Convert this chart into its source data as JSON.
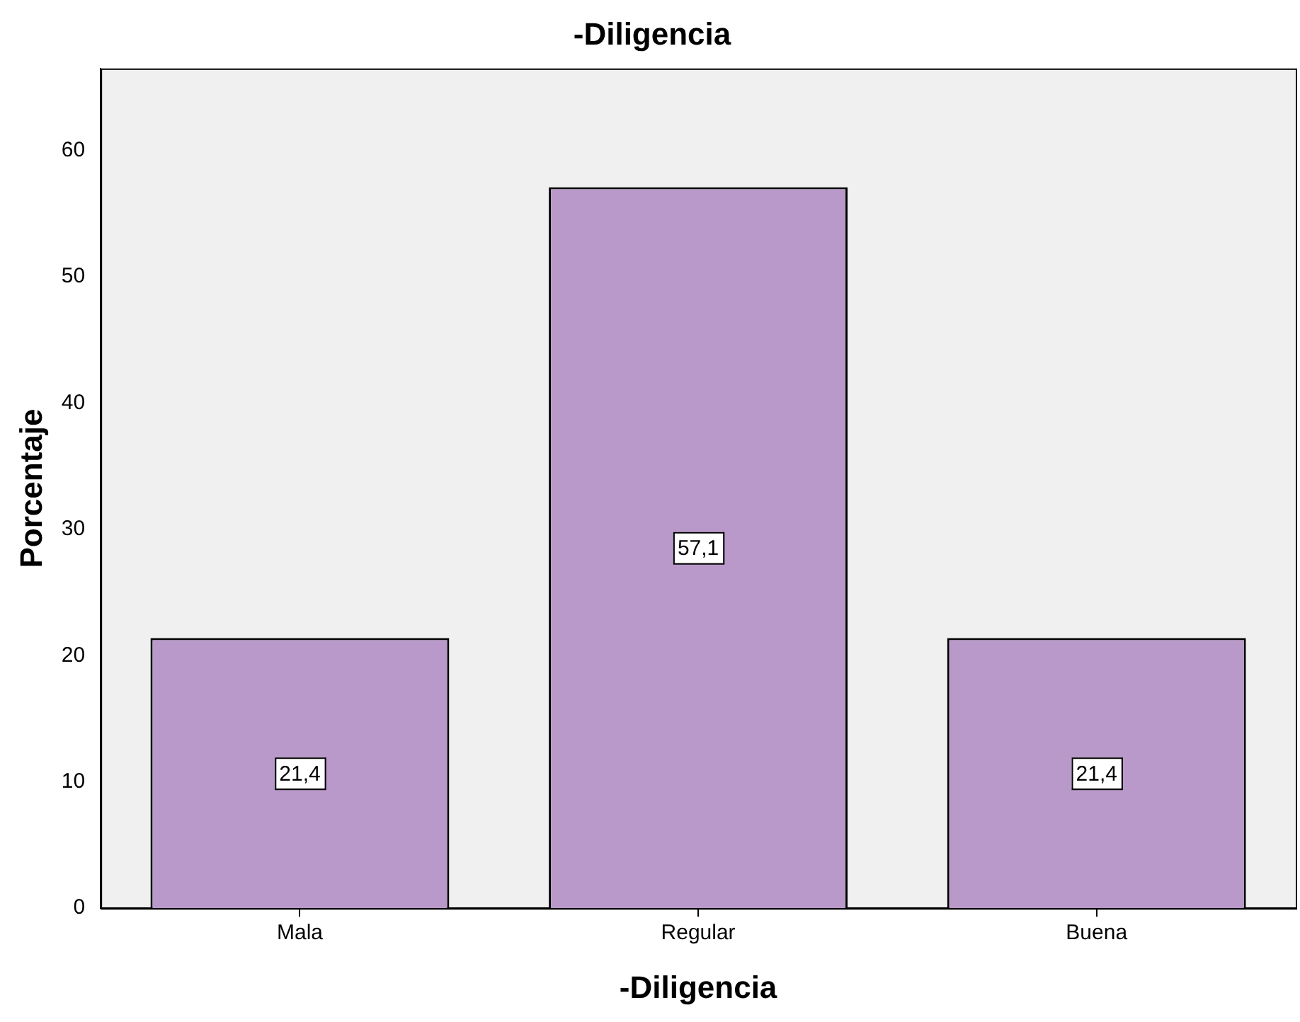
{
  "chart_data": {
    "type": "bar",
    "title": "-Diligencia",
    "xlabel": "-Diligencia",
    "ylabel": "Porcentaje",
    "categories": [
      "Mala",
      "Regular",
      "Buena"
    ],
    "values": [
      21.4,
      57.1,
      21.4
    ],
    "color": "#b899c9",
    "value_labels": [
      "21,4",
      "57,1",
      "21,4"
    ],
    "ylim": [
      0,
      66.5
    ],
    "yticks": [
      0,
      10,
      20,
      30,
      40,
      50,
      60
    ],
    "grid": false,
    "legend": false
  }
}
